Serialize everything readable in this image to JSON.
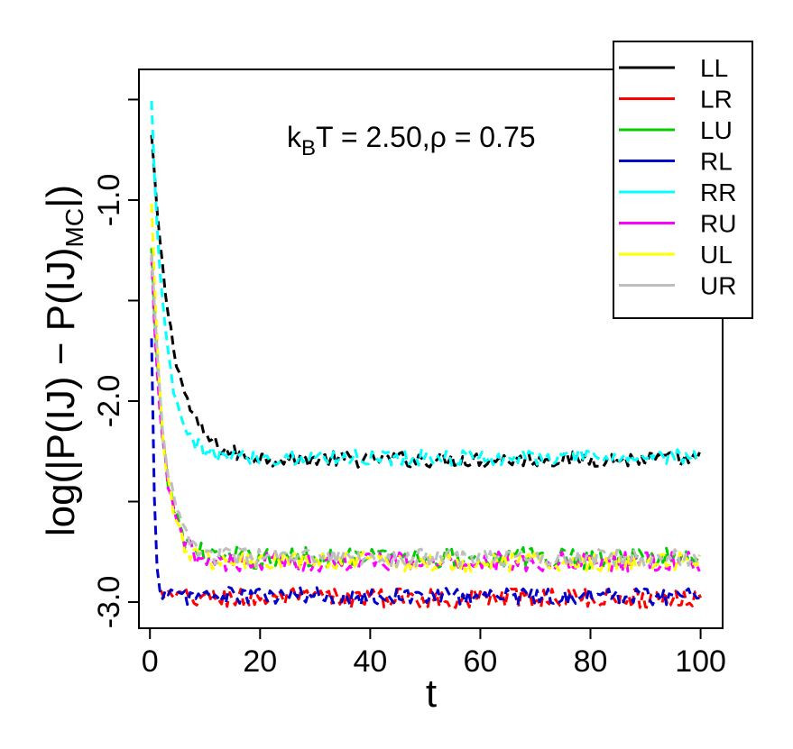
{
  "chart_data": {
    "type": "line",
    "title": "",
    "annotation": {
      "kb": "k",
      "kb_sub": "B",
      "tail": "T = 2.50,ρ = 0.75"
    },
    "xlabel": "t",
    "ylabel": {
      "main": "log(|P(IJ) − P(IJ)",
      "sub": "MC",
      "close": "|)"
    },
    "xlim": [
      -2,
      104
    ],
    "ylim": [
      -3.13,
      -0.35
    ],
    "xticks": [
      0,
      20,
      40,
      60,
      80,
      100
    ],
    "xtick_labels": [
      "0",
      "20",
      "40",
      "60",
      "80",
      "100"
    ],
    "yticks": [
      -3.0,
      -2.5,
      -2.0,
      -1.5,
      -1.0,
      -0.5
    ],
    "ytick_labels": [
      "-3.0",
      "",
      "-2.0",
      "",
      "-1.0",
      ""
    ],
    "grid": false,
    "legend_position": "top-right",
    "line_style": "dashed",
    "series": [
      {
        "name": "LL",
        "color": "#000000",
        "start": -0.68,
        "plateau": -2.29,
        "tau": 3.8,
        "noise": 0.04,
        "x_start": 0.3
      },
      {
        "name": "LR",
        "color": "#ff0000",
        "start": -2.95,
        "plateau": -2.98,
        "tau": 1.0,
        "noise": 0.05,
        "x_start": 2.0
      },
      {
        "name": "LU",
        "color": "#00cc00",
        "start": -1.25,
        "plateau": -2.78,
        "tau": 2.2,
        "noise": 0.055,
        "x_start": 0.3
      },
      {
        "name": "RL",
        "color": "#0000cc",
        "start": -1.7,
        "plateau": -2.97,
        "tau": 0.5,
        "noise": 0.045,
        "x_start": 0.3
      },
      {
        "name": "RR",
        "color": "#00ffff",
        "start": -0.52,
        "plateau": -2.28,
        "tau": 2.4,
        "noise": 0.04,
        "x_start": 0.3
      },
      {
        "name": "RU",
        "color": "#ff00ff",
        "start": -1.3,
        "plateau": -2.8,
        "tau": 2.2,
        "noise": 0.05,
        "x_start": 0.3
      },
      {
        "name": "UL",
        "color": "#ffff00",
        "start": -1.0,
        "plateau": -2.8,
        "tau": 2.0,
        "noise": 0.05,
        "x_start": 0.3
      },
      {
        "name": "UR",
        "color": "#bebebe",
        "start": -1.25,
        "plateau": -2.78,
        "tau": 2.4,
        "noise": 0.045,
        "x_start": 0.3
      }
    ]
  }
}
